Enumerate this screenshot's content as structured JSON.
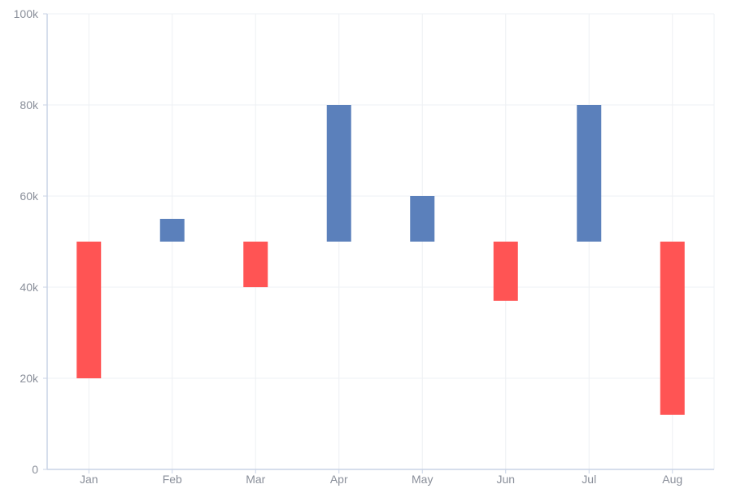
{
  "chart_data": {
    "type": "bar",
    "subtype": "floating-range",
    "categories": [
      "Jan",
      "Feb",
      "Mar",
      "Apr",
      "May",
      "Jun",
      "Jul",
      "Aug"
    ],
    "series": [
      {
        "ranges": [
          [
            50000,
            20000
          ],
          [
            50000,
            55000
          ],
          [
            50000,
            40000
          ],
          [
            50000,
            80000
          ],
          [
            50000,
            60000
          ],
          [
            50000,
            37000
          ],
          [
            50000,
            80000
          ],
          [
            50000,
            12000
          ]
        ]
      }
    ],
    "ylim": [
      0,
      100000
    ],
    "y_ticks": [
      0,
      20000,
      40000,
      60000,
      80000,
      100000
    ],
    "y_tick_labels": [
      "0",
      "20k",
      "40k",
      "60k",
      "80k",
      "100k"
    ],
    "grid": true,
    "colors": {
      "increase": "#5b80bb",
      "decrease": "#ff5454",
      "grid": "#eef0f4",
      "axis": "#c9d3e6",
      "tick_text": "#8a8f9a"
    }
  }
}
